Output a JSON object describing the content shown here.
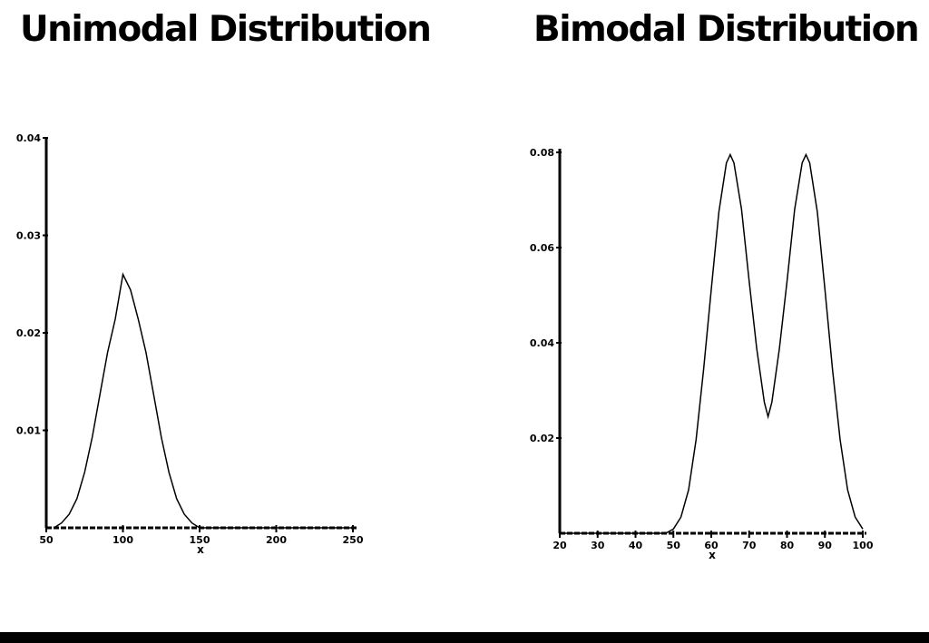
{
  "chart_data": [
    {
      "type": "line",
      "title": "Unimodal Distribution",
      "xlabel": "x",
      "ylabel": "",
      "xlim": [
        50,
        250
      ],
      "ylim": [
        0,
        0.04
      ],
      "x_ticks": [
        50,
        100,
        150,
        200,
        250
      ],
      "x_tick_labels": [
        "50",
        "100",
        "150",
        "200",
        "250"
      ],
      "y_ticks": [
        0.01,
        0.02,
        0.03,
        0.04
      ],
      "y_tick_labels": [
        "0.01",
        "0.02",
        "0.03",
        "0.04"
      ],
      "grid": false,
      "series": [
        {
          "x": [
            55,
            60,
            65,
            70,
            75,
            80,
            85,
            90,
            95,
            100,
            105,
            110,
            115,
            120,
            125,
            130,
            135,
            140,
            145,
            150,
            160,
            180,
            200,
            220,
            250
          ],
          "y": [
            0,
            0.0005,
            0.0014,
            0.003,
            0.0057,
            0.0093,
            0.0137,
            0.018,
            0.0214,
            0.026,
            0.0244,
            0.0214,
            0.018,
            0.0137,
            0.0093,
            0.0057,
            0.003,
            0.0014,
            0.0005,
            0,
            0,
            0,
            0,
            0,
            0
          ]
        }
      ]
    },
    {
      "type": "line",
      "title": "Bimodal Distribution",
      "xlabel": "x",
      "ylabel": "",
      "xlim": [
        20,
        100
      ],
      "ylim": [
        0,
        0.08
      ],
      "x_ticks": [
        20,
        30,
        40,
        50,
        60,
        70,
        80,
        90,
        100
      ],
      "x_tick_labels": [
        "20",
        "30",
        "40",
        "50",
        "60",
        "70",
        "80",
        "90",
        "100"
      ],
      "y_ticks": [
        0.02,
        0.04,
        0.06,
        0.08
      ],
      "y_tick_labels": [
        "0.02",
        "0.04",
        "0.06",
        "0.08"
      ],
      "grid": false,
      "series": [
        {
          "x": [
            20,
            30,
            40,
            44,
            48,
            50,
            52,
            54,
            56,
            58,
            60,
            62,
            64,
            65,
            66,
            68,
            70,
            72,
            74,
            75,
            76,
            78,
            80,
            82,
            84,
            85,
            86,
            88,
            90,
            92,
            94,
            96,
            98,
            100
          ],
          "y": [
            0,
            0,
            0,
            0,
            0,
            0.0009,
            0.0034,
            0.0091,
            0.0197,
            0.0345,
            0.0512,
            0.0675,
            0.0778,
            0.0795,
            0.0778,
            0.068,
            0.0529,
            0.0388,
            0.0275,
            0.0245,
            0.0275,
            0.0388,
            0.0529,
            0.068,
            0.0778,
            0.0795,
            0.0778,
            0.0675,
            0.0512,
            0.0345,
            0.0197,
            0.0091,
            0.0034,
            0.0009
          ]
        }
      ]
    }
  ]
}
